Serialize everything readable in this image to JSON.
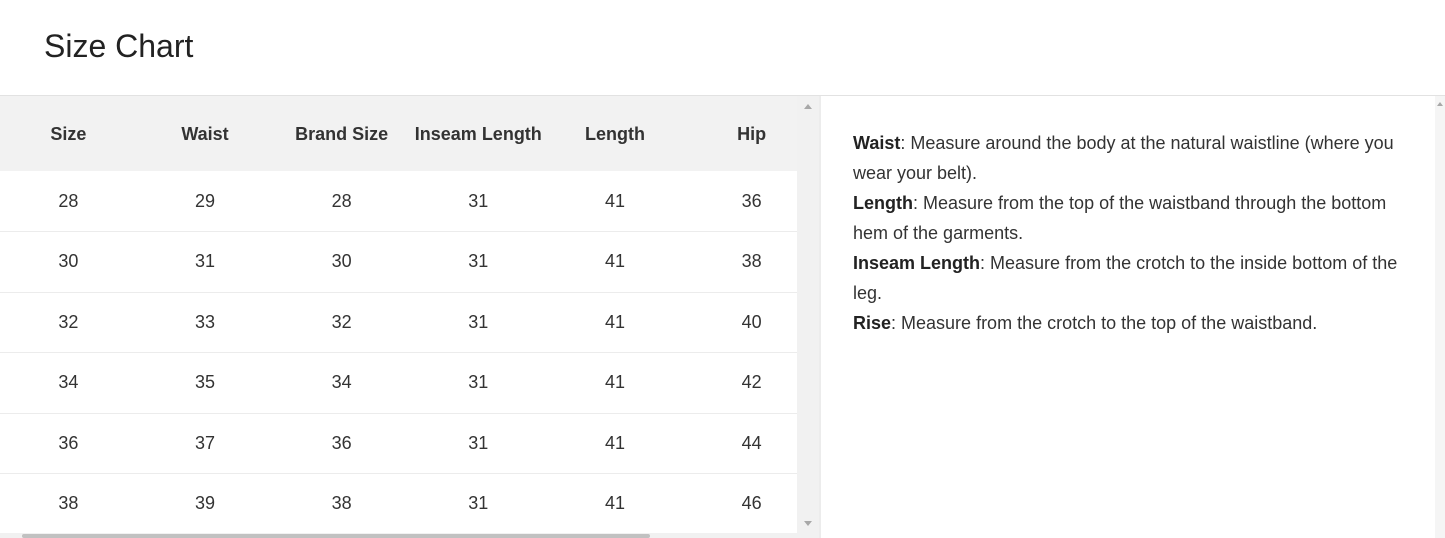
{
  "title": "Size Chart",
  "table": {
    "headers": [
      "Size",
      "Waist",
      "Brand Size",
      "Inseam Length",
      "Length",
      "Hip"
    ],
    "rows": [
      [
        "28",
        "29",
        "28",
        "31",
        "41",
        "36"
      ],
      [
        "30",
        "31",
        "30",
        "31",
        "41",
        "38"
      ],
      [
        "32",
        "33",
        "32",
        "31",
        "41",
        "40"
      ],
      [
        "34",
        "35",
        "34",
        "31",
        "41",
        "42"
      ],
      [
        "36",
        "37",
        "36",
        "31",
        "41",
        "44"
      ],
      [
        "38",
        "39",
        "38",
        "31",
        "41",
        "46"
      ]
    ]
  },
  "notes": [
    {
      "term": "Waist",
      "text": ": Measure around the body at the natural waistline (where you wear your belt)."
    },
    {
      "term": "Length",
      "text": ": Measure from the top of the waistband through the bottom hem of the garments."
    },
    {
      "term": "Inseam Length",
      "text": ": Measure from the crotch to the inside bottom of the leg."
    },
    {
      "term": "Rise",
      "text": ": Measure from the crotch to the top of the waistband."
    }
  ]
}
